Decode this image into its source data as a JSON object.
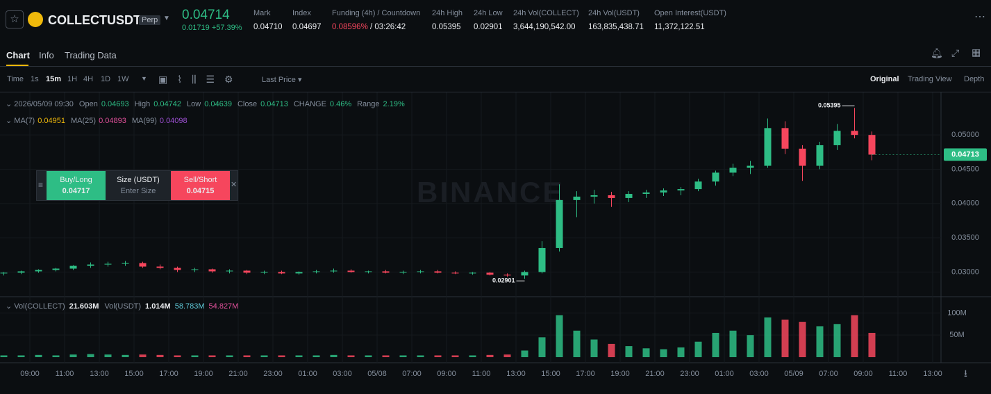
{
  "header": {
    "symbol": "COLLECTUSDT",
    "badge": "Perp",
    "price": "0.04714",
    "change": "0.01719",
    "change_pct": "+57.39%",
    "stats": [
      {
        "label": "Mark",
        "value": "0.04710"
      },
      {
        "label": "Index",
        "value": "0.04697"
      },
      {
        "label": "Funding (4h) / Countdown",
        "value": "0.08596%",
        "countdown": "/ 03:26:42"
      },
      {
        "label": "24h High",
        "value": "0.05395"
      },
      {
        "label": "24h Low",
        "value": "0.02901"
      },
      {
        "label": "24h Vol(COLLECT)",
        "value": "3,644,190,542.00"
      },
      {
        "label": "24h Vol(USDT)",
        "value": "163,835,438.71"
      },
      {
        "label": "Open Interest(USDT)",
        "value": "11,372,122.51"
      }
    ]
  },
  "tabs": [
    "Chart",
    "Info",
    "Trading Data"
  ],
  "intervals": [
    "Time",
    "1s",
    "15m",
    "1H",
    "4H",
    "1D",
    "1W"
  ],
  "price_type": "Last Price",
  "views": [
    "Original",
    "Trading View",
    "Depth"
  ],
  "ohlc": {
    "date": "2026/05/09 09:30",
    "items": [
      {
        "label": "Open",
        "value": "0.04693"
      },
      {
        "label": "High",
        "value": "0.04742"
      },
      {
        "label": "Low",
        "value": "0.04639"
      },
      {
        "label": "Close",
        "value": "0.04713"
      },
      {
        "label": "CHANGE",
        "value": "0.46%"
      },
      {
        "label": "Range",
        "value": "2.19%"
      }
    ]
  },
  "ma": [
    {
      "label": "MA(7)",
      "value": "0.04951",
      "color": "#f0b90b"
    },
    {
      "label": "MA(25)",
      "value": "0.04893",
      "color": "#e0509a"
    },
    {
      "label": "MA(99)",
      "value": "0.04098",
      "color": "#9b4fd0"
    }
  ],
  "order_panel": {
    "buy": "Buy/Long",
    "buy_price": "0.04717",
    "size": "Size (USDT)",
    "placeholder": "Enter Size",
    "sell": "Sell/Short",
    "sell_price": "0.04715"
  },
  "watermark": "BINANCE",
  "volume_legend": {
    "items": [
      {
        "label": "Vol(COLLECT)",
        "value": "21.603M"
      },
      {
        "label": "Vol(USDT)",
        "value": "1.014M"
      }
    ],
    "ma_values": [
      {
        "value": "58.783M",
        "color": "#5fc9d8"
      },
      {
        "value": "54.827M",
        "color": "#e0509a"
      }
    ]
  },
  "chart_data": {
    "type": "candlestick",
    "up_color": "#2ebd85",
    "down_color": "#f6465d",
    "grid": true,
    "candles": [
      [
        0.0298,
        0.03,
        0.0295,
        0.0299
      ],
      [
        0.0299,
        0.0302,
        0.0297,
        0.0301
      ],
      [
        0.0301,
        0.0304,
        0.0299,
        0.0303
      ],
      [
        0.0303,
        0.0306,
        0.0301,
        0.0305
      ],
      [
        0.0305,
        0.031,
        0.0303,
        0.0309
      ],
      [
        0.0309,
        0.0314,
        0.0306,
        0.0311
      ],
      [
        0.0311,
        0.0315,
        0.0308,
        0.0312
      ],
      [
        0.0312,
        0.0316,
        0.0309,
        0.0313
      ],
      [
        0.0313,
        0.0315,
        0.0306,
        0.0308
      ],
      [
        0.0308,
        0.0311,
        0.0304,
        0.0306
      ],
      [
        0.0306,
        0.0308,
        0.03,
        0.0303
      ],
      [
        0.0303,
        0.0306,
        0.03,
        0.0304
      ],
      [
        0.0304,
        0.0305,
        0.0299,
        0.0301
      ],
      [
        0.0301,
        0.0304,
        0.0298,
        0.0302
      ],
      [
        0.0302,
        0.0303,
        0.0297,
        0.0299
      ],
      [
        0.0299,
        0.0302,
        0.0297,
        0.03
      ],
      [
        0.03,
        0.0302,
        0.0297,
        0.0298
      ],
      [
        0.0298,
        0.0301,
        0.0296,
        0.03
      ],
      [
        0.03,
        0.0303,
        0.0298,
        0.0301
      ],
      [
        0.0301,
        0.0305,
        0.0299,
        0.0302
      ],
      [
        0.0302,
        0.0304,
        0.0299,
        0.03
      ],
      [
        0.03,
        0.0302,
        0.0298,
        0.0301
      ],
      [
        0.0301,
        0.0303,
        0.0298,
        0.0299
      ],
      [
        0.0299,
        0.0302,
        0.0297,
        0.03
      ],
      [
        0.03,
        0.0303,
        0.0298,
        0.0301
      ],
      [
        0.0301,
        0.0303,
        0.0298,
        0.0299
      ],
      [
        0.0299,
        0.0301,
        0.0297,
        0.0298
      ],
      [
        0.0298,
        0.03,
        0.0296,
        0.0299
      ],
      [
        0.0299,
        0.03,
        0.0295,
        0.0296
      ],
      [
        0.0296,
        0.0298,
        0.0293,
        0.0295
      ],
      [
        0.0295,
        0.0302,
        0.02901,
        0.03
      ],
      [
        0.03,
        0.0345,
        0.0298,
        0.0335
      ],
      [
        0.0335,
        0.0428,
        0.033,
        0.0405
      ],
      [
        0.0405,
        0.0418,
        0.038,
        0.041
      ],
      [
        0.041,
        0.042,
        0.04,
        0.0412
      ],
      [
        0.0412,
        0.0417,
        0.0395,
        0.0408
      ],
      [
        0.0408,
        0.0418,
        0.0402,
        0.0414
      ],
      [
        0.0414,
        0.042,
        0.0408,
        0.0416
      ],
      [
        0.0416,
        0.0422,
        0.0411,
        0.0419
      ],
      [
        0.0419,
        0.0424,
        0.0412,
        0.0421
      ],
      [
        0.0421,
        0.0436,
        0.0418,
        0.0432
      ],
      [
        0.0432,
        0.0448,
        0.0426,
        0.0445
      ],
      [
        0.0445,
        0.0458,
        0.044,
        0.0452
      ],
      [
        0.0452,
        0.0462,
        0.0443,
        0.0455
      ],
      [
        0.0455,
        0.0524,
        0.0452,
        0.051
      ],
      [
        0.051,
        0.052,
        0.0472,
        0.048
      ],
      [
        0.048,
        0.0485,
        0.0433,
        0.0455
      ],
      [
        0.0455,
        0.049,
        0.045,
        0.0485
      ],
      [
        0.0485,
        0.0516,
        0.0478,
        0.0506
      ],
      [
        0.0506,
        0.05395,
        0.0495,
        0.05
      ],
      [
        0.05,
        0.0505,
        0.0463,
        0.04713
      ]
    ],
    "ylim": [
      0.0266,
      0.056
    ],
    "yticks": [
      {
        "value": 0.03,
        "label": "0.03000"
      },
      {
        "value": 0.035,
        "label": "0.03500"
      },
      {
        "value": 0.04,
        "label": "0.04000"
      },
      {
        "value": 0.045,
        "label": "0.04500"
      },
      {
        "value": 0.05,
        "label": "0.05000"
      }
    ],
    "volume": {
      "values": [
        4,
        4,
        5,
        4,
        6,
        7,
        6,
        5,
        6,
        5,
        4,
        4,
        4,
        4,
        4,
        4,
        4,
        4,
        4,
        5,
        4,
        4,
        4,
        4,
        4,
        4,
        4,
        4,
        5,
        6,
        15,
        45,
        95,
        60,
        40,
        30,
        25,
        20,
        18,
        22,
        35,
        55,
        60,
        50,
        90,
        85,
        80,
        70,
        75,
        95,
        55
      ],
      "ylim": [
        0,
        132
      ],
      "yticks": [
        {
          "value": 50,
          "label": "50M"
        },
        {
          "value": 100,
          "label": "100M"
        }
      ]
    },
    "time_labels": [
      "09:00",
      "11:00",
      "13:00",
      "15:00",
      "17:00",
      "19:00",
      "21:00",
      "23:00",
      "01:00",
      "03:00",
      "05/08",
      "07:00",
      "09:00",
      "11:00",
      "13:00",
      "15:00",
      "17:00",
      "19:00",
      "21:00",
      "23:00",
      "01:00",
      "03:00",
      "05/09",
      "07:00",
      "09:00",
      "11:00",
      "13:00"
    ]
  }
}
